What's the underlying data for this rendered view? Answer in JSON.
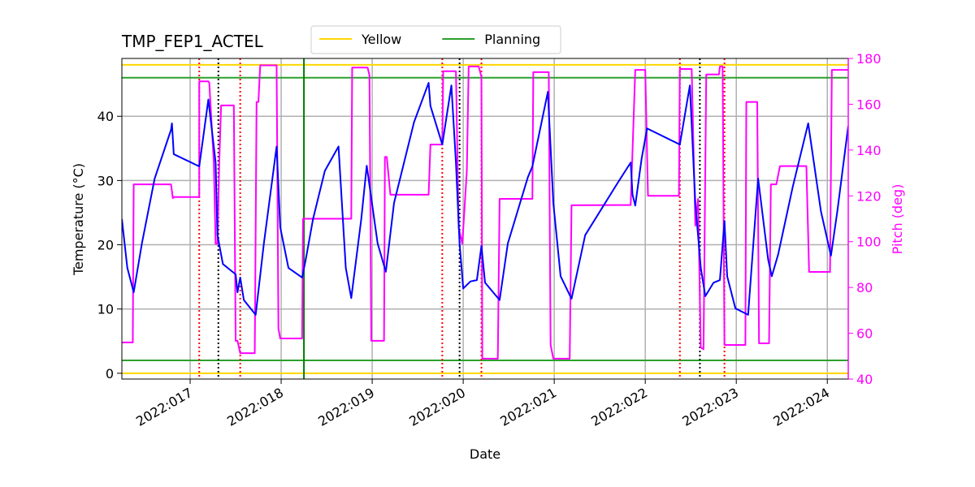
{
  "chart_data": {
    "type": "line",
    "title": "TMP_FEP1_ACTEL",
    "xlabel": "Date",
    "ylabel": "Temperature (°C)",
    "y2label": "Pitch (deg)",
    "y2color": "#ff00ff",
    "grid": true,
    "legend": "top",
    "xlim": [
      16.25,
      24.23
    ],
    "ylim": [
      -0.9,
      49
    ],
    "y2lim": [
      40,
      180
    ],
    "xticks": [
      {
        "value": 17,
        "label": "2022:017"
      },
      {
        "value": 18,
        "label": "2022:018"
      },
      {
        "value": 19,
        "label": "2022:019"
      },
      {
        "value": 20,
        "label": "2022:020"
      },
      {
        "value": 21,
        "label": "2022:021"
      },
      {
        "value": 22,
        "label": "2022:022"
      },
      {
        "value": 23,
        "label": "2022:023"
      },
      {
        "value": 24,
        "label": "2022:024"
      }
    ],
    "yticks": [
      0,
      10,
      20,
      30,
      40
    ],
    "y2ticks": [
      40,
      60,
      80,
      100,
      120,
      140,
      160,
      180
    ],
    "limits": [
      {
        "name": "Yellow",
        "color": "#ffd700",
        "values": [
          0,
          48
        ]
      },
      {
        "name": "Planning",
        "color": "#2ca02c",
        "values": [
          2,
          46
        ]
      }
    ],
    "vlines": [
      {
        "color": "#008000",
        "style": "solid",
        "x": [
          18.25
        ]
      },
      {
        "color": "#ff0000",
        "style": "dotted",
        "x": [
          17.1,
          17.55,
          19.77,
          20.2,
          22.38,
          22.87
        ]
      },
      {
        "color": "#000000",
        "style": "dotted",
        "x": [
          17.31,
          19.96,
          22.6
        ]
      }
    ],
    "series": [
      {
        "color": "#0000ff",
        "x": [
          16.25,
          16.31,
          16.38,
          16.47,
          16.61,
          16.79,
          16.8,
          16.82,
          17.1,
          17.2,
          17.28,
          17.3,
          17.36,
          17.5,
          17.52,
          17.55,
          17.59,
          17.72,
          17.81,
          17.95,
          17.99,
          18.08,
          18.23,
          18.27,
          18.35,
          18.48,
          18.63,
          18.71,
          18.77,
          18.88,
          18.94,
          19.06,
          19.15,
          19.24,
          19.46,
          19.62,
          19.64,
          19.77,
          19.87,
          19.92,
          19.96,
          20.0,
          20.08,
          20.15,
          20.2,
          20.24,
          20.4,
          20.49,
          20.71,
          20.76,
          20.93,
          20.99,
          21.07,
          21.19,
          21.34,
          21.7,
          21.84,
          21.86,
          21.89,
          21.96,
          22.02,
          22.38,
          22.49,
          22.55,
          22.61,
          22.66,
          22.75,
          22.82,
          22.87,
          22.9,
          22.99,
          23.13,
          23.24,
          23.35,
          23.39,
          23.46,
          23.62,
          23.79,
          23.93,
          24.04,
          24.11,
          24.23
        ],
        "values": [
          24,
          16.4,
          12.6,
          20.2,
          30.3,
          37.9,
          38.9,
          34.1,
          32.2,
          42.6,
          32.8,
          21.5,
          17,
          15.4,
          12.6,
          14.9,
          11.4,
          9.1,
          20.2,
          35.3,
          22.7,
          16.4,
          14.9,
          17.7,
          24,
          31.5,
          35.3,
          16.4,
          11.7,
          24,
          32.3,
          20.2,
          15.8,
          26.5,
          39.1,
          45.2,
          41.6,
          35.6,
          44.8,
          32.8,
          20.2,
          13.2,
          14.3,
          14.5,
          19.8,
          14.1,
          11.4,
          20.2,
          30.5,
          32.2,
          43.8,
          26.5,
          15.1,
          11.6,
          21.5,
          29.7,
          32.8,
          27.8,
          26.1,
          33.4,
          38.1,
          35.6,
          44.8,
          26.5,
          16.4,
          12,
          14.1,
          14.5,
          23.7,
          15.1,
          10.1,
          9.1,
          30.3,
          17.7,
          15.1,
          18.5,
          29,
          38.9,
          25.2,
          18.3,
          25.2,
          38.5
        ]
      },
      {
        "color": "#ff00ff",
        "axis": "y2",
        "x": [
          16.25,
          16.37,
          16.38,
          16.79,
          16.81,
          16.82,
          17.1,
          17.1,
          17.2,
          17.21,
          17.26,
          17.28,
          17.3,
          17.32,
          17.34,
          17.48,
          17.5,
          17.52,
          17.55,
          17.71,
          17.73,
          17.75,
          17.77,
          17.95,
          17.97,
          17.99,
          18.23,
          18.24,
          18.77,
          18.78,
          18.95,
          18.97,
          18.99,
          19.13,
          19.14,
          19.16,
          19.2,
          19.62,
          19.64,
          19.77,
          19.78,
          19.92,
          19.95,
          19.99,
          20.04,
          20.06,
          20.17,
          20.2,
          20.21,
          20.38,
          20.4,
          20.76,
          20.77,
          20.94,
          20.96,
          20.99,
          21.17,
          21.19,
          21.84,
          21.89,
          22.0,
          22.03,
          22.37,
          22.38,
          22.51,
          22.55,
          22.58,
          22.61,
          22.64,
          22.67,
          22.81,
          22.82,
          22.85,
          22.87,
          23.1,
          23.11,
          23.23,
          23.25,
          23.36,
          23.38,
          23.44,
          23.48,
          23.77,
          23.8,
          24.03,
          24.05,
          24.23
        ],
        "values": [
          56,
          56,
          125,
          125,
          119,
          119.5,
          119.5,
          170,
          170,
          169.5,
          134.7,
          99,
          99,
          134.7,
          159.5,
          159.5,
          56.7,
          56.7,
          51.3,
          51.3,
          161,
          161,
          177,
          177,
          62,
          57.7,
          57.7,
          110,
          110,
          176,
          176,
          172.6,
          56.7,
          56.7,
          137,
          137,
          120.5,
          120.5,
          142.4,
          142.4,
          174.4,
          174.4,
          106.3,
          99,
          131,
          176.5,
          176.5,
          172,
          48.9,
          48.9,
          118.7,
          118.7,
          174,
          174,
          54.9,
          48.9,
          48.9,
          115.9,
          116,
          175,
          175,
          120,
          120,
          175.4,
          175.4,
          107,
          118.7,
          53.8,
          53,
          173,
          173,
          176.5,
          176.5,
          54.9,
          54.9,
          161,
          161,
          55.6,
          55.6,
          125,
          125,
          133,
          133,
          86.8,
          86.8,
          175,
          175
        ]
      }
    ]
  }
}
